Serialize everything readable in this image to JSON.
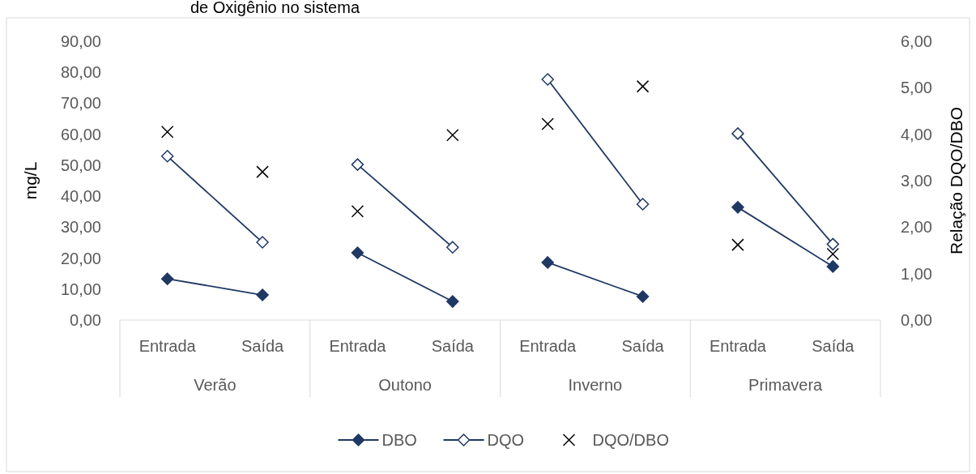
{
  "chart_data": {
    "type": "line",
    "title": "de Oxigênio no sistema",
    "ylabel": "mg/L",
    "y2label": "Relação DQO/DBO",
    "categories": [
      "Entrada",
      "Saída",
      "Entrada",
      "Saída",
      "Entrada",
      "Saída",
      "Entrada",
      "Saída"
    ],
    "annotations": [
      "Verão",
      "Outono",
      "Inverno",
      "Primavera"
    ],
    "series": [
      {
        "name": "DBO",
        "color": "#1f3864",
        "marker": "diamond",
        "values": [
          13.3,
          8.1,
          21.7,
          6.0,
          18.6,
          7.6,
          36.4,
          17.3
        ]
      },
      {
        "name": "DQO",
        "color": "#1f3864",
        "marker": "diamond",
        "values": [
          52.9,
          25.1,
          50.2,
          23.5,
          77.7,
          37.4,
          60.2,
          24.5
        ]
      },
      {
        "name": "DQO/DBO",
        "type": "scatter",
        "axis": "y2",
        "color": "#000000",
        "marker": "cross",
        "values": [
          4.05,
          3.19,
          2.34,
          3.98,
          4.22,
          5.03,
          1.62,
          1.42
        ]
      }
    ],
    "ylim": [
      0,
      90
    ],
    "yticks": [
      {
        "value": 0,
        "label": "0,00"
      },
      {
        "value": 10,
        "label": "10,00"
      },
      {
        "value": 20,
        "label": "20,00"
      },
      {
        "value": 30,
        "label": "30,00"
      },
      {
        "value": 40,
        "label": "40,00"
      },
      {
        "value": 50,
        "label": "50,00"
      },
      {
        "value": 60,
        "label": "60,00"
      },
      {
        "value": 70,
        "label": "70,00"
      },
      {
        "value": 80,
        "label": "80,00"
      },
      {
        "value": 90,
        "label": "90,00"
      }
    ],
    "y2lim": [
      0,
      6
    ],
    "y2ticks": [
      {
        "value": 0,
        "label": "0,00"
      },
      {
        "value": 1,
        "label": "1,00"
      },
      {
        "value": 2,
        "label": "2,00"
      },
      {
        "value": 3,
        "label": "3,00"
      },
      {
        "value": 4,
        "label": "4,00"
      },
      {
        "value": 5,
        "label": "5,00"
      },
      {
        "value": 6,
        "label": "6,00"
      }
    ],
    "grid": false,
    "legend": "bottom"
  }
}
